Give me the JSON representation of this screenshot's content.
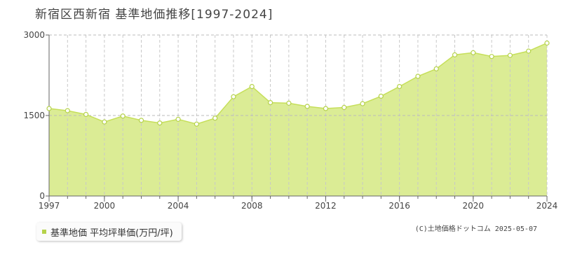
{
  "title": "新宿区西新宿 基準地価推移[1997-2024]",
  "colors": {
    "fill": "#dbec95",
    "line": "#c6df5a",
    "marker_fill": "#ffffff",
    "marker_stroke": "#b5d24a",
    "grid": "#c8c8c8",
    "axis": "#666666",
    "legend_swatch": "#b5d24a"
  },
  "legend": {
    "label": "基準地価 平均坪単価(万円/坪)"
  },
  "credit": "(C)土地価格ドットコム 2025-05-07",
  "chart_data": {
    "type": "area",
    "x": [
      1997,
      1998,
      1999,
      2000,
      2001,
      2002,
      2003,
      2004,
      2005,
      2006,
      2007,
      2008,
      2009,
      2010,
      2011,
      2012,
      2013,
      2014,
      2015,
      2016,
      2017,
      2018,
      2019,
      2020,
      2021,
      2022,
      2023,
      2024
    ],
    "series": [
      {
        "name": "基準地価 平均坪単価(万円/坪)",
        "values": [
          1630,
          1590,
          1520,
          1380,
          1490,
          1410,
          1360,
          1430,
          1340,
          1450,
          1850,
          2040,
          1740,
          1730,
          1670,
          1630,
          1650,
          1720,
          1860,
          2040,
          2230,
          2370,
          2630,
          2670,
          2600,
          2620,
          2700,
          2850
        ]
      }
    ],
    "xticks": [
      "1997",
      "2000",
      "2004",
      "2008",
      "2012",
      "2016",
      "2020",
      "2024"
    ],
    "yticks": [
      "0",
      "1500",
      "3000"
    ],
    "xlim": [
      1997,
      2024
    ],
    "ylim": [
      0,
      3000
    ],
    "grid": "vertical dashed every year; horizontal dashed at 1500 and 3000",
    "legend_position": "bottom-left"
  }
}
